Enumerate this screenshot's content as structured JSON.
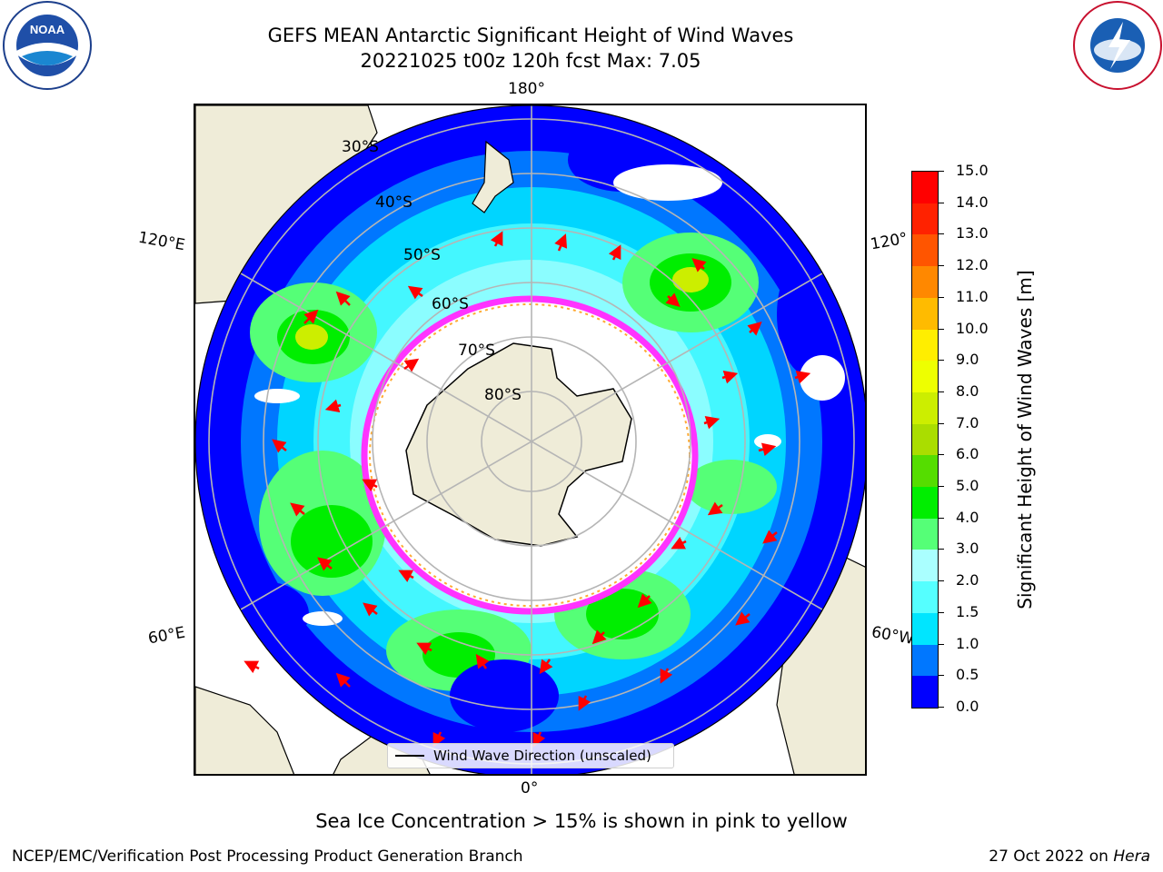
{
  "title": {
    "line1": "GEFS MEAN Antarctic Significant Height of Wind Waves",
    "line2": "20221025 t00z 120h fcst   Max: 7.05"
  },
  "map": {
    "longitude_labels": {
      "top": "180°",
      "bottom": "0°",
      "upper_left": "120°E",
      "upper_right": "120°",
      "lower_left": "60°E",
      "lower_right": "60°W"
    },
    "latitude_labels": [
      "30°S",
      "40°S",
      "50°S",
      "60°S",
      "70°S",
      "80°S"
    ],
    "legend_label": "Wind Wave Direction (unscaled)",
    "colors": {
      "ocean_low": "#0000ff",
      "land": "#efecd8",
      "arrow": "#ff0000",
      "sea_ice": "#ff33ff"
    }
  },
  "colorbar": {
    "label": "Significant Height of Wind Waves [m]",
    "ticks": [
      "0.0",
      "0.5",
      "1.0",
      "1.5",
      "2.0",
      "3.0",
      "4.0",
      "5.0",
      "6.0",
      "7.0",
      "8.0",
      "9.0",
      "10.0",
      "11.0",
      "12.0",
      "13.0",
      "14.0",
      "15.0"
    ],
    "colors": [
      "#0000ff",
      "#0077ff",
      "#00e5ff",
      "#55ffff",
      "#aaffff",
      "#55ff77",
      "#00ee00",
      "#55dd00",
      "#aadd00",
      "#ccee00",
      "#eeff00",
      "#ffee00",
      "#ffbb00",
      "#ff8800",
      "#ff5500",
      "#ff2200",
      "#ff0000"
    ]
  },
  "note": "Sea Ice Concentration > 15% is shown in pink to yellow",
  "footer": {
    "left": "NCEP/EMC/Verification Post Processing Product Generation Branch",
    "right_prefix": "27 Oct 2022 on ",
    "right_host": "Hera"
  },
  "logos": {
    "left": "NOAA",
    "right": "NATIONAL WEATHER SERVICE"
  }
}
